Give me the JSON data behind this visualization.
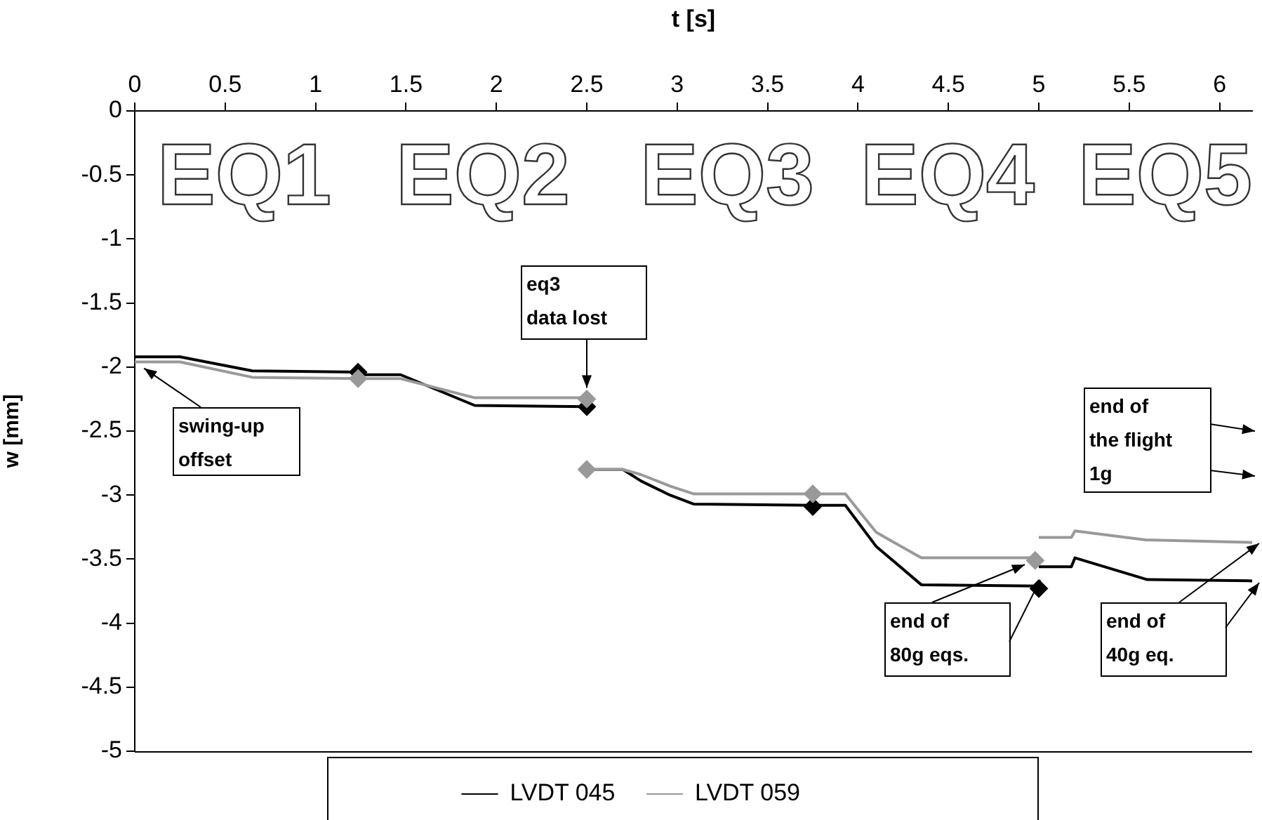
{
  "chart_data": {
    "type": "line",
    "xlabel": "t [s]",
    "ylabel": "w [mm]",
    "xlim": [
      0,
      6.18
    ],
    "xticks": [
      0,
      0.5,
      1,
      1.5,
      2,
      2.5,
      3,
      3.5,
      4,
      4.5,
      5,
      5.5,
      6
    ],
    "ylim": [
      -5,
      0
    ],
    "yticks": [
      0,
      -0.5,
      -1,
      -1.5,
      -2,
      -2.5,
      -3,
      -3.5,
      -4,
      -4.5,
      -5
    ],
    "legend": "bottom",
    "line_style": "solid",
    "series": [
      {
        "name": "LVDT 045",
        "color": "#000000",
        "x": [
          0,
          0.25,
          0.65,
          1.235,
          1.24,
          1.47,
          1.88,
          2.5
        ],
        "values": [
          -1.92,
          -1.92,
          -2.03,
          -2.04,
          -2.06,
          -2.06,
          -2.3,
          -2.31
        ]
      },
      {
        "name": "LVDT 059",
        "color": "#999999",
        "x": [
          0,
          0.25,
          0.65,
          1.235,
          1.47,
          1.88,
          2.5
        ],
        "values": [
          -1.96,
          -1.96,
          -2.08,
          -2.09,
          -2.09,
          -2.24,
          -2.24
        ]
      },
      {
        "color": "#000000",
        "x": [
          2.5,
          2.7,
          2.8,
          2.96,
          3.09,
          3.75,
          3.93,
          4.1,
          4.35,
          5.0
        ],
        "values": [
          -2.8,
          -2.8,
          -2.89,
          -3.0,
          -3.07,
          -3.08,
          -3.08,
          -3.4,
          -3.7,
          -3.71
        ]
      },
      {
        "color": "#999999",
        "x": [
          2.5,
          2.7,
          2.8,
          2.96,
          3.09,
          3.75,
          3.93,
          4.1,
          4.35,
          5.0
        ],
        "values": [
          -2.8,
          -2.8,
          -2.84,
          -2.93,
          -2.99,
          -2.99,
          -2.99,
          -3.29,
          -3.49,
          -3.49
        ]
      },
      {
        "color": "#000000",
        "x": [
          5.0,
          5.18,
          5.2,
          5.6,
          6.18
        ],
        "values": [
          -3.56,
          -3.56,
          -3.49,
          -3.66,
          -3.67
        ]
      },
      {
        "color": "#999999",
        "x": [
          5.0,
          5.18,
          5.2,
          5.59,
          6.18
        ],
        "values": [
          -3.33,
          -3.33,
          -3.28,
          -3.35,
          -3.37
        ]
      },
      {
        "type": "scatter",
        "marker": "diamond",
        "color": "#000000",
        "x": [
          1.235,
          2.5,
          3.75,
          5.0
        ],
        "values": [
          -2.04,
          -2.31,
          -3.09,
          -3.73
        ]
      },
      {
        "type": "scatter",
        "marker": "diamond",
        "color": "#999999",
        "x": [
          1.235,
          2.5,
          2.5,
          3.75,
          4.98
        ],
        "values": [
          -2.09,
          -2.25,
          -2.8,
          -2.99,
          -3.51
        ]
      }
    ],
    "annotations": [
      "EQ1",
      "EQ2",
      "EQ3",
      "EQ4",
      "EQ5",
      {
        "text": "swing-up offset",
        "x": 0,
        "y": -1.96
      },
      {
        "text": "eq3 data lost",
        "x": 2.5,
        "y": -2.25
      },
      {
        "text": "end of 80g eqs.",
        "x": 4.98,
        "y": -3.51
      },
      "end of 40g eq.",
      "end of the flight 1g"
    ]
  }
}
